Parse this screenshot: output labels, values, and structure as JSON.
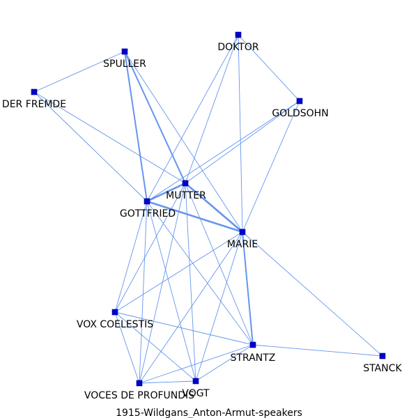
{
  "caption": "1915-Wildgans_Anton-Armut-speakers",
  "colors": {
    "edge": "#6495ed",
    "node_fill": "#0000cd",
    "node_stroke": "#00008b",
    "background": "#ffffff"
  },
  "nodes": [
    {
      "id": "doktor",
      "label": "DOKTOR"
    },
    {
      "id": "spuller",
      "label": "SPULLER"
    },
    {
      "id": "der_fremde",
      "label": "DER FREMDE"
    },
    {
      "id": "goldsohn",
      "label": "GOLDSOHN"
    },
    {
      "id": "mutter",
      "label": "MUTTER"
    },
    {
      "id": "gottfried",
      "label": "GOTTFRIED"
    },
    {
      "id": "marie",
      "label": "MARIE"
    },
    {
      "id": "vox_coelestis",
      "label": "VOX COELESTIS"
    },
    {
      "id": "strantz",
      "label": "STRANTZ"
    },
    {
      "id": "stanck",
      "label": "STANCK"
    },
    {
      "id": "voces_de_profundis",
      "label": "VOCES DE PROFUNDIS"
    },
    {
      "id": "vogt",
      "label": "VOGT"
    }
  ],
  "edges": [
    {
      "source": "spuller",
      "target": "der_fremde",
      "weight": 1
    },
    {
      "source": "spuller",
      "target": "gottfried",
      "weight": 2
    },
    {
      "source": "spuller",
      "target": "mutter",
      "weight": 2
    },
    {
      "source": "spuller",
      "target": "marie",
      "weight": 1
    },
    {
      "source": "der_fremde",
      "target": "gottfried",
      "weight": 1
    },
    {
      "source": "der_fremde",
      "target": "mutter",
      "weight": 1
    },
    {
      "source": "doktor",
      "target": "gottfried",
      "weight": 1
    },
    {
      "source": "doktor",
      "target": "mutter",
      "weight": 1
    },
    {
      "source": "doktor",
      "target": "marie",
      "weight": 1
    },
    {
      "source": "doktor",
      "target": "goldsohn",
      "weight": 1
    },
    {
      "source": "goldsohn",
      "target": "gottfried",
      "weight": 1
    },
    {
      "source": "goldsohn",
      "target": "mutter",
      "weight": 1
    },
    {
      "source": "goldsohn",
      "target": "marie",
      "weight": 1
    },
    {
      "source": "mutter",
      "target": "gottfried",
      "weight": 3
    },
    {
      "source": "mutter",
      "target": "marie",
      "weight": 3
    },
    {
      "source": "gottfried",
      "target": "marie",
      "weight": 3
    },
    {
      "source": "marie",
      "target": "strantz",
      "weight": 2
    },
    {
      "source": "gottfried",
      "target": "vox_coelestis",
      "weight": 1
    },
    {
      "source": "gottfried",
      "target": "voces_de_profundis",
      "weight": 1
    },
    {
      "source": "gottfried",
      "target": "vogt",
      "weight": 1
    },
    {
      "source": "gottfried",
      "target": "strantz",
      "weight": 1
    },
    {
      "source": "mutter",
      "target": "vox_coelestis",
      "weight": 1
    },
    {
      "source": "mutter",
      "target": "voces_de_profundis",
      "weight": 1
    },
    {
      "source": "mutter",
      "target": "vogt",
      "weight": 1
    },
    {
      "source": "mutter",
      "target": "strantz",
      "weight": 1
    },
    {
      "source": "marie",
      "target": "vox_coelestis",
      "weight": 1
    },
    {
      "source": "marie",
      "target": "voces_de_profundis",
      "weight": 1
    },
    {
      "source": "marie",
      "target": "vogt",
      "weight": 1
    },
    {
      "source": "marie",
      "target": "stanck",
      "weight": 1
    },
    {
      "source": "vox_coelestis",
      "target": "strantz",
      "weight": 1
    },
    {
      "source": "vox_coelestis",
      "target": "voces_de_profundis",
      "weight": 1
    },
    {
      "source": "vox_coelestis",
      "target": "vogt",
      "weight": 1
    },
    {
      "source": "strantz",
      "target": "stanck",
      "weight": 1
    },
    {
      "source": "strantz",
      "target": "voces_de_profundis",
      "weight": 1
    },
    {
      "source": "strantz",
      "target": "vogt",
      "weight": 1
    },
    {
      "source": "voces_de_profundis",
      "target": "vogt",
      "weight": 1
    }
  ]
}
